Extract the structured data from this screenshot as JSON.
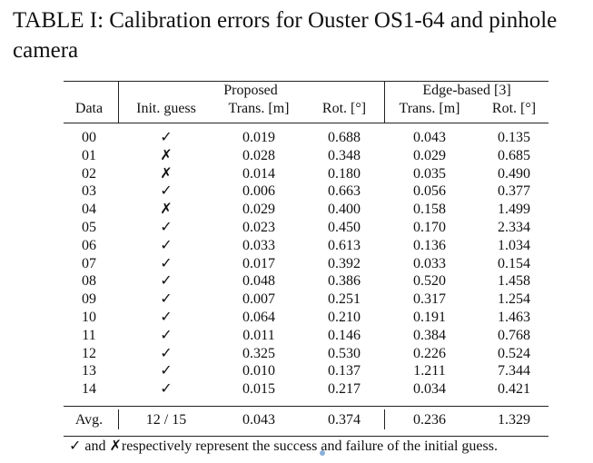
{
  "caption": "TABLE I: Calibration errors for Ouster OS1-64 and pinhole camera",
  "headers": {
    "data": "Data",
    "init_guess": "Init. guess",
    "proposed": "Proposed",
    "edge_based": "Edge-based [3]",
    "trans": "Trans. [m]",
    "rot": "Rot. [°]"
  },
  "rows": [
    {
      "data": "00",
      "ok": true,
      "p_trans": "0.019",
      "p_rot": "0.688",
      "e_trans": "0.043",
      "e_rot": "0.135"
    },
    {
      "data": "01",
      "ok": false,
      "p_trans": "0.028",
      "p_rot": "0.348",
      "e_trans": "0.029",
      "e_rot": "0.685"
    },
    {
      "data": "02",
      "ok": false,
      "p_trans": "0.014",
      "p_rot": "0.180",
      "e_trans": "0.035",
      "e_rot": "0.490"
    },
    {
      "data": "03",
      "ok": true,
      "p_trans": "0.006",
      "p_rot": "0.663",
      "e_trans": "0.056",
      "e_rot": "0.377"
    },
    {
      "data": "04",
      "ok": false,
      "p_trans": "0.029",
      "p_rot": "0.400",
      "e_trans": "0.158",
      "e_rot": "1.499"
    },
    {
      "data": "05",
      "ok": true,
      "p_trans": "0.023",
      "p_rot": "0.450",
      "e_trans": "0.170",
      "e_rot": "2.334"
    },
    {
      "data": "06",
      "ok": true,
      "p_trans": "0.033",
      "p_rot": "0.613",
      "e_trans": "0.136",
      "e_rot": "1.034"
    },
    {
      "data": "07",
      "ok": true,
      "p_trans": "0.017",
      "p_rot": "0.392",
      "e_trans": "0.033",
      "e_rot": "0.154"
    },
    {
      "data": "08",
      "ok": true,
      "p_trans": "0.048",
      "p_rot": "0.386",
      "e_trans": "0.520",
      "e_rot": "1.458"
    },
    {
      "data": "09",
      "ok": true,
      "p_trans": "0.007",
      "p_rot": "0.251",
      "e_trans": "0.317",
      "e_rot": "1.254"
    },
    {
      "data": "10",
      "ok": true,
      "p_trans": "0.064",
      "p_rot": "0.210",
      "e_trans": "0.191",
      "e_rot": "1.463"
    },
    {
      "data": "11",
      "ok": true,
      "p_trans": "0.011",
      "p_rot": "0.146",
      "e_trans": "0.384",
      "e_rot": "0.768"
    },
    {
      "data": "12",
      "ok": true,
      "p_trans": "0.325",
      "p_rot": "0.530",
      "e_trans": "0.226",
      "e_rot": "0.524"
    },
    {
      "data": "13",
      "ok": true,
      "p_trans": "0.010",
      "p_rot": "0.137",
      "e_trans": "1.211",
      "e_rot": "7.344"
    },
    {
      "data": "14",
      "ok": true,
      "p_trans": "0.015",
      "p_rot": "0.217",
      "e_trans": "0.034",
      "e_rot": "0.421"
    }
  ],
  "avg": {
    "label": "Avg.",
    "init": "12 / 15",
    "p_trans": "0.043",
    "p_rot": "0.374",
    "e_trans": "0.236",
    "e_rot": "1.329"
  },
  "footnote": {
    "check_glyph": "✓",
    "cross_glyph": "✗",
    "text": "and ✗respectively represent the success and failure of the initial guess."
  }
}
